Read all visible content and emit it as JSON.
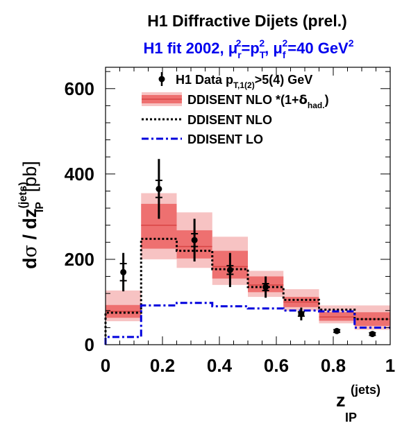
{
  "title": "H1 Diffractive Dijets (prel.)",
  "subtitle": {
    "lead": "H1 fit 2002, ",
    "mu_r": "μ",
    "r_sub": "r",
    "two1": "2",
    "eq1": "=p",
    "t_sub": "T",
    "two2": "2",
    "comma": ", ",
    "mu_f": "μ",
    "f_sub": "f",
    "two3": "2",
    "rest": "=40 GeV",
    "two4": "2"
  },
  "ylabel": {
    "d1": "d",
    "sigma": "σ",
    "mid": " / dz",
    "sup": "(jets)",
    "sub": "IP",
    "unit": "[pb]"
  },
  "xlabel": {
    "z": "z",
    "sup": "(jets)",
    "sub": "IP"
  },
  "legend": {
    "data": {
      "lead": "H1 Data p",
      "sub": "T,1(2)",
      "rest": ">5(4) GeV"
    },
    "nlo_had": {
      "lead": "DDISENT NLO *(1+",
      "delta": "δ",
      "sub": "had.",
      "rest": ")"
    },
    "nlo": "DDISENT NLO",
    "lo": "DDISENT LO"
  },
  "colors": {
    "title": "#000000",
    "subtitle": "#0000ee",
    "band_outer": "#f7c3c3",
    "band_inner": "#ee7070",
    "band_center": "#d84444",
    "data": "#000000",
    "nlo": "#000000",
    "lo": "#0000dd"
  },
  "chart_data": {
    "type": "bar",
    "xlim": [
      0,
      1
    ],
    "ylim": [
      0,
      650
    ],
    "x_ticks": [
      "0",
      "0.2",
      "0.4",
      "0.6",
      "0.8",
      "1"
    ],
    "y_ticks": [
      "0",
      "200",
      "400",
      "600"
    ],
    "bin_edges": [
      0,
      0.125,
      0.25,
      0.375,
      0.5,
      0.625,
      0.75,
      0.875,
      1.0
    ],
    "series": [
      {
        "name": "H1 Data p_T,1(2)>5(4) GeV",
        "x": [
          0.0625,
          0.1875,
          0.3125,
          0.4375,
          0.5625,
          0.6875,
          0.8125,
          0.9375
        ],
        "y": [
          170,
          365,
          245,
          175,
          135,
          72,
          32,
          25
        ],
        "stat_err": [
          20,
          20,
          15,
          10,
          8,
          5,
          3,
          3
        ],
        "tot_err": [
          45,
          70,
          50,
          40,
          25,
          15,
          6,
          5
        ]
      },
      {
        "name": "DDISENT NLO *(1+δhad.)",
        "center": [
          78,
          280,
          230,
          183,
          140,
          100,
          65,
          60
        ],
        "inner_low": [
          63,
          225,
          202,
          155,
          123,
          88,
          56,
          44
        ],
        "inner_high": [
          93,
          330,
          268,
          220,
          160,
          112,
          76,
          76
        ],
        "outer_low": [
          55,
          200,
          180,
          140,
          112,
          80,
          50,
          35
        ],
        "outer_high": [
          127,
          355,
          310,
          253,
          173,
          130,
          92,
          92
        ]
      },
      {
        "name": "DDISENT NLO",
        "values": [
          75,
          248,
          220,
          177,
          135,
          105,
          82,
          60
        ]
      },
      {
        "name": "DDISENT LO",
        "values": [
          18,
          92,
          98,
          90,
          85,
          80,
          78,
          40
        ]
      }
    ]
  }
}
